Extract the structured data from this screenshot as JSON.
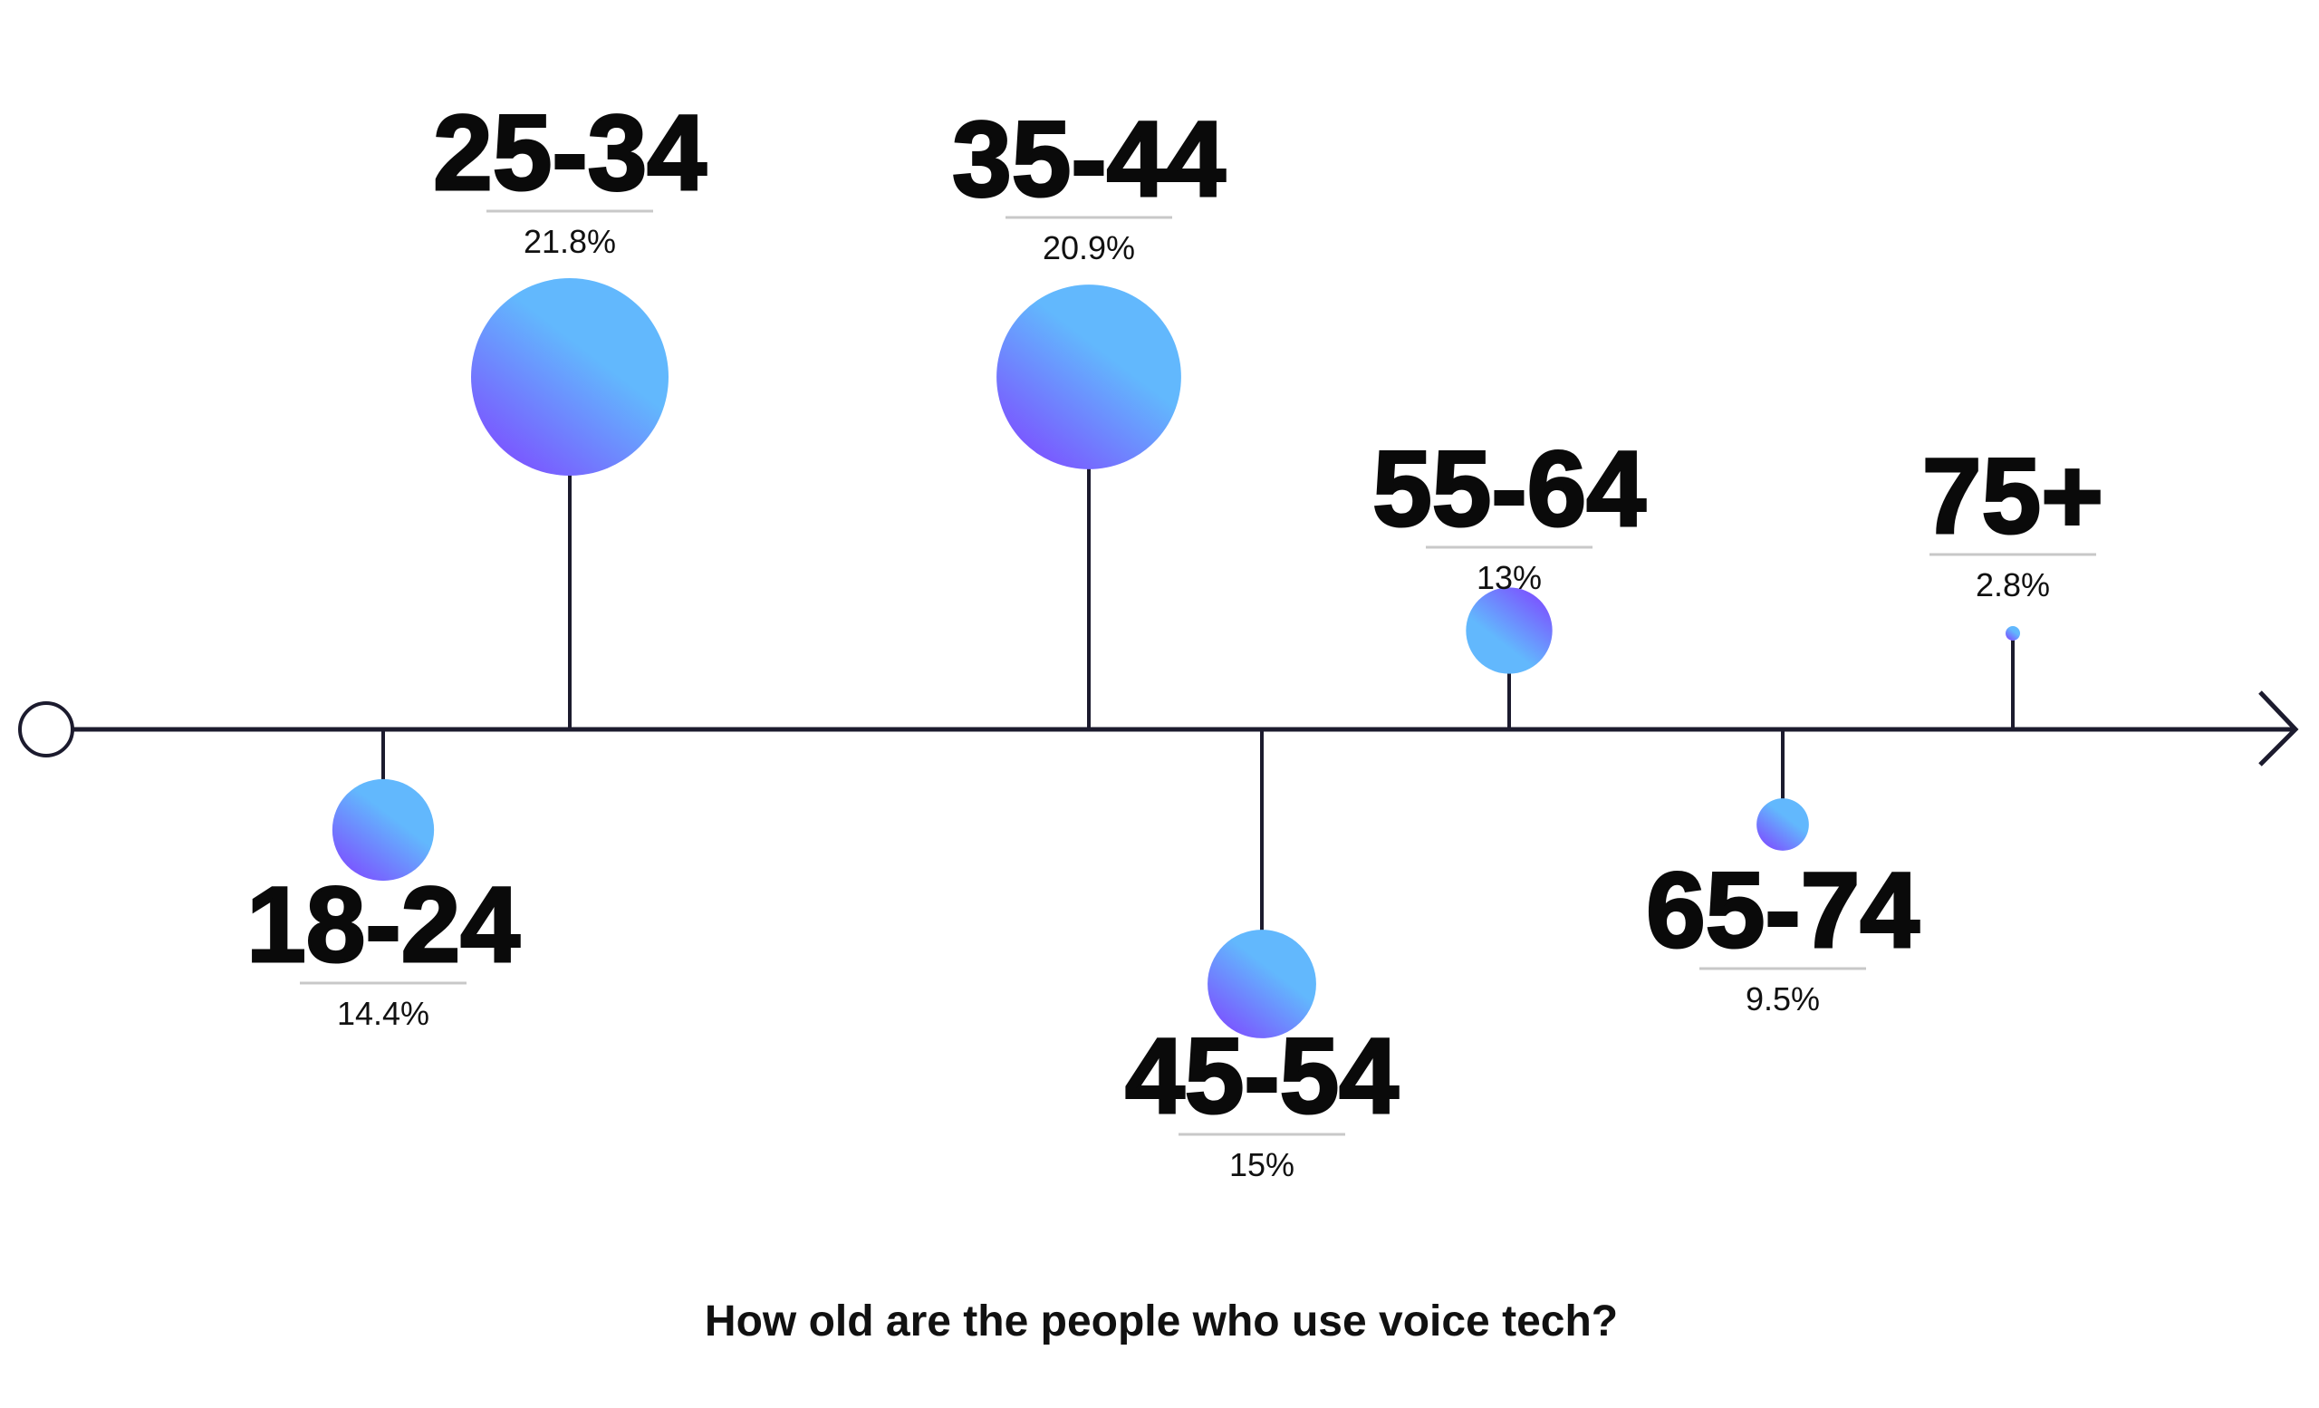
{
  "chart_data": {
    "type": "timeline-bubble",
    "title": "How old are the people who use voice tech?",
    "categories": [
      "18-24",
      "25-34",
      "35-44",
      "45-54",
      "55-64",
      "65-74",
      "75+"
    ],
    "values": [
      14.4,
      21.8,
      20.9,
      15,
      13,
      9.5,
      2.8
    ],
    "value_labels": [
      "14.4%",
      "21.8%",
      "20.9%",
      "15%",
      "13%",
      "9.5%",
      "2.8%"
    ],
    "unit": "%",
    "colors": {
      "axis": "#1c1b2e",
      "gradient_light": "#62b8fd",
      "gradient_dark": "#7b55ff",
      "rule": "#c8c8c8"
    }
  }
}
